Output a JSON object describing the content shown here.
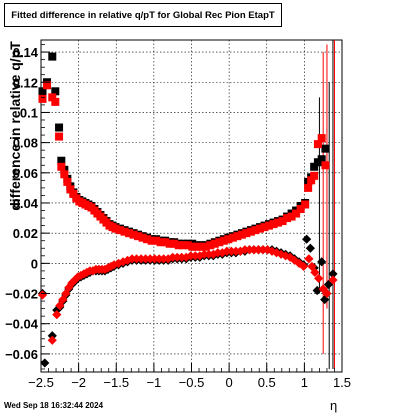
{
  "chart_data": {
    "type": "scatter",
    "title": "Fitted difference in relative q/pT for Global Rec Pion EtapT",
    "xlabel": "η",
    "ylabel": "difference in relative q/pT",
    "xlim": [
      -2.5,
      1.5
    ],
    "ylim": [
      -0.072,
      0.148
    ],
    "xticks": [
      "−2.5",
      "−2",
      "−1.5",
      "−1",
      "−0.5",
      "0",
      "0.5",
      "1",
      "1.5"
    ],
    "yticks": [
      "−0.06",
      "−0.04",
      "−0.02",
      "0",
      "0.02",
      "0.04",
      "0.06",
      "0.08",
      "0.1",
      "0.12",
      "0.14"
    ],
    "grid": true,
    "timestamp": "Wed Sep 18 16:32:44 2024",
    "series": [
      {
        "marker": "square",
        "color": "#000000",
        "points": [
          [
            -2.48,
            0.114
          ],
          [
            -2.42,
            0.12
          ],
          [
            -2.35,
            0.137
          ],
          [
            -2.31,
            0.114
          ],
          [
            -2.26,
            0.09
          ],
          [
            -2.23,
            0.068
          ],
          [
            -2.19,
            0.062
          ],
          [
            -2.15,
            0.056
          ],
          [
            -2.11,
            0.051
          ],
          [
            -2.07,
            0.047
          ],
          [
            -2.03,
            0.044
          ],
          [
            -1.99,
            0.042
          ],
          [
            -1.95,
            0.041
          ],
          [
            -1.91,
            0.04
          ],
          [
            -1.87,
            0.039
          ],
          [
            -1.83,
            0.038
          ],
          [
            -1.79,
            0.036
          ],
          [
            -1.75,
            0.034
          ],
          [
            -1.71,
            0.032
          ],
          [
            -1.67,
            0.03
          ],
          [
            -1.63,
            0.028
          ],
          [
            -1.59,
            0.026
          ],
          [
            -1.55,
            0.025
          ],
          [
            -1.51,
            0.024
          ],
          [
            -1.45,
            0.023
          ],
          [
            -1.39,
            0.022
          ],
          [
            -1.33,
            0.021
          ],
          [
            -1.27,
            0.02
          ],
          [
            -1.21,
            0.019
          ],
          [
            -1.15,
            0.018
          ],
          [
            -1.09,
            0.017
          ],
          [
            -1.03,
            0.016
          ],
          [
            -0.97,
            0.016
          ],
          [
            -0.91,
            0.015
          ],
          [
            -0.85,
            0.015
          ],
          [
            -0.79,
            0.014
          ],
          [
            -0.73,
            0.014
          ],
          [
            -0.67,
            0.013
          ],
          [
            -0.61,
            0.013
          ],
          [
            -0.55,
            0.013
          ],
          [
            -0.49,
            0.013
          ],
          [
            -0.43,
            0.012
          ],
          [
            -0.37,
            0.012
          ],
          [
            -0.31,
            0.012
          ],
          [
            -0.25,
            0.013
          ],
          [
            -0.19,
            0.014
          ],
          [
            -0.13,
            0.015
          ],
          [
            -0.07,
            0.016
          ],
          [
            -0.01,
            0.017
          ],
          [
            0.05,
            0.018
          ],
          [
            0.11,
            0.019
          ],
          [
            0.17,
            0.02
          ],
          [
            0.23,
            0.021
          ],
          [
            0.29,
            0.022
          ],
          [
            0.35,
            0.023
          ],
          [
            0.41,
            0.024
          ],
          [
            0.47,
            0.025
          ],
          [
            0.53,
            0.026
          ],
          [
            0.59,
            0.027
          ],
          [
            0.65,
            0.028
          ],
          [
            0.71,
            0.029
          ],
          [
            0.77,
            0.031
          ],
          [
            0.83,
            0.033
          ],
          [
            0.89,
            0.035
          ],
          [
            0.95,
            0.038
          ],
          [
            1.01,
            0.04
          ],
          [
            1.05,
            0.054
          ],
          [
            1.09,
            0.057
          ],
          [
            1.13,
            0.064
          ],
          [
            1.18,
            0.067
          ],
          [
            1.23,
            0.069
          ],
          [
            1.28,
            0.076
          ]
        ]
      },
      {
        "marker": "square",
        "color": "#ff0000",
        "points": [
          [
            -2.48,
            0.109
          ],
          [
            -2.42,
            0.118
          ],
          [
            -2.35,
            0.11
          ],
          [
            -2.31,
            0.107
          ],
          [
            -2.26,
            0.084
          ],
          [
            -2.23,
            0.064
          ],
          [
            -2.19,
            0.059
          ],
          [
            -2.15,
            0.054
          ],
          [
            -2.11,
            0.049
          ],
          [
            -2.07,
            0.046
          ],
          [
            -2.03,
            0.043
          ],
          [
            -1.99,
            0.041
          ],
          [
            -1.95,
            0.04
          ],
          [
            -1.91,
            0.039
          ],
          [
            -1.87,
            0.038
          ],
          [
            -1.83,
            0.037
          ],
          [
            -1.79,
            0.035
          ],
          [
            -1.75,
            0.033
          ],
          [
            -1.71,
            0.031
          ],
          [
            -1.67,
            0.029
          ],
          [
            -1.63,
            0.027
          ],
          [
            -1.59,
            0.025
          ],
          [
            -1.55,
            0.024
          ],
          [
            -1.51,
            0.023
          ],
          [
            -1.45,
            0.022
          ],
          [
            -1.39,
            0.021
          ],
          [
            -1.33,
            0.02
          ],
          [
            -1.27,
            0.019
          ],
          [
            -1.21,
            0.018
          ],
          [
            -1.15,
            0.017
          ],
          [
            -1.09,
            0.016
          ],
          [
            -1.03,
            0.015
          ],
          [
            -0.97,
            0.015
          ],
          [
            -0.91,
            0.014
          ],
          [
            -0.85,
            0.014
          ],
          [
            -0.79,
            0.013
          ],
          [
            -0.73,
            0.013
          ],
          [
            -0.67,
            0.012
          ],
          [
            -0.61,
            0.012
          ],
          [
            -0.55,
            0.012
          ],
          [
            -0.49,
            0.011
          ],
          [
            -0.43,
            0.011
          ],
          [
            -0.37,
            0.011
          ],
          [
            -0.31,
            0.011
          ],
          [
            -0.25,
            0.012
          ],
          [
            -0.19,
            0.013
          ],
          [
            -0.13,
            0.014
          ],
          [
            -0.07,
            0.015
          ],
          [
            -0.01,
            0.016
          ],
          [
            0.05,
            0.017
          ],
          [
            0.11,
            0.018
          ],
          [
            0.17,
            0.019
          ],
          [
            0.23,
            0.02
          ],
          [
            0.29,
            0.021
          ],
          [
            0.35,
            0.022
          ],
          [
            0.41,
            0.023
          ],
          [
            0.47,
            0.024
          ],
          [
            0.53,
            0.025
          ],
          [
            0.59,
            0.026
          ],
          [
            0.65,
            0.027
          ],
          [
            0.71,
            0.028
          ],
          [
            0.77,
            0.03
          ],
          [
            0.83,
            0.031
          ],
          [
            0.89,
            0.033
          ],
          [
            0.95,
            0.036
          ],
          [
            1.01,
            0.039
          ],
          [
            1.05,
            0.05
          ],
          [
            1.09,
            0.055
          ],
          [
            1.13,
            0.058
          ],
          [
            1.18,
            0.079
          ],
          [
            1.23,
            0.083
          ],
          [
            1.28,
            0.065
          ]
        ]
      },
      {
        "marker": "diamond",
        "color": "#000000",
        "points": [
          [
            -2.48,
            -0.02
          ],
          [
            -2.45,
            -0.066
          ],
          [
            -2.35,
            -0.048
          ],
          [
            -2.29,
            -0.031
          ],
          [
            -2.25,
            -0.029
          ],
          [
            -2.21,
            -0.025
          ],
          [
            -2.17,
            -0.021
          ],
          [
            -2.13,
            -0.017
          ],
          [
            -2.09,
            -0.014
          ],
          [
            -2.05,
            -0.012
          ],
          [
            -2.01,
            -0.01
          ],
          [
            -1.97,
            -0.009
          ],
          [
            -1.93,
            -0.008
          ],
          [
            -1.89,
            -0.007
          ],
          [
            -1.85,
            -0.006
          ],
          [
            -1.81,
            -0.005
          ],
          [
            -1.77,
            -0.005
          ],
          [
            -1.73,
            -0.005
          ],
          [
            -1.69,
            -0.005
          ],
          [
            -1.65,
            -0.005
          ],
          [
            -1.61,
            -0.004
          ],
          [
            -1.57,
            -0.003
          ],
          [
            -1.53,
            -0.002
          ],
          [
            -1.47,
            -0.001
          ],
          [
            -1.41,
            0
          ],
          [
            -1.35,
            0.001
          ],
          [
            -1.29,
            0.002
          ],
          [
            -1.23,
            0.002
          ],
          [
            -1.17,
            0.002
          ],
          [
            -1.11,
            0.002
          ],
          [
            -1.05,
            0.002
          ],
          [
            -0.99,
            0.002
          ],
          [
            -0.93,
            0.002
          ],
          [
            -0.87,
            0.002
          ],
          [
            -0.81,
            0.002
          ],
          [
            -0.75,
            0.003
          ],
          [
            -0.69,
            0.003
          ],
          [
            -0.63,
            0.003
          ],
          [
            -0.57,
            0.003
          ],
          [
            -0.51,
            0.004
          ],
          [
            -0.45,
            0.004
          ],
          [
            -0.39,
            0.004
          ],
          [
            -0.33,
            0.005
          ],
          [
            -0.27,
            0.005
          ],
          [
            -0.21,
            0.005
          ],
          [
            -0.15,
            0.006
          ],
          [
            -0.09,
            0.006
          ],
          [
            -0.03,
            0.007
          ],
          [
            0.03,
            0.007
          ],
          [
            0.09,
            0.007
          ],
          [
            0.15,
            0.008
          ],
          [
            0.21,
            0.008
          ],
          [
            0.27,
            0.009
          ],
          [
            0.33,
            0.009
          ],
          [
            0.39,
            0.009
          ],
          [
            0.45,
            0.009
          ],
          [
            0.51,
            0.009
          ],
          [
            0.57,
            0.009
          ],
          [
            0.63,
            0.008
          ],
          [
            0.69,
            0.007
          ],
          [
            0.75,
            0.006
          ],
          [
            0.81,
            0.005
          ],
          [
            0.87,
            0.003
          ],
          [
            0.93,
            0.001
          ],
          [
            0.99,
            -0.001
          ],
          [
            1.03,
            0.016
          ],
          [
            1.08,
            0.01
          ],
          [
            1.13,
            -0.003
          ],
          [
            1.17,
            -0.018
          ],
          [
            1.23,
            0.001
          ],
          [
            1.27,
            -0.024
          ],
          [
            1.32,
            -0.014
          ],
          [
            1.38,
            -0.007
          ]
        ]
      },
      {
        "marker": "diamond",
        "color": "#ff0000",
        "points": [
          [
            -2.48,
            -0.021
          ],
          [
            -2.35,
            -0.051
          ],
          [
            -2.29,
            -0.034
          ],
          [
            -2.25,
            -0.028
          ],
          [
            -2.21,
            -0.024
          ],
          [
            -2.17,
            -0.02
          ],
          [
            -2.13,
            -0.016
          ],
          [
            -2.09,
            -0.013
          ],
          [
            -2.05,
            -0.011
          ],
          [
            -2.01,
            -0.009
          ],
          [
            -1.97,
            -0.008
          ],
          [
            -1.93,
            -0.007
          ],
          [
            -1.89,
            -0.006
          ],
          [
            -1.85,
            -0.005
          ],
          [
            -1.81,
            -0.005
          ],
          [
            -1.77,
            -0.004
          ],
          [
            -1.73,
            -0.004
          ],
          [
            -1.69,
            -0.004
          ],
          [
            -1.65,
            -0.004
          ],
          [
            -1.61,
            -0.003
          ],
          [
            -1.57,
            -0.002
          ],
          [
            -1.53,
            -0.001
          ],
          [
            -1.47,
            0
          ],
          [
            -1.41,
            0.001
          ],
          [
            -1.35,
            0.002
          ],
          [
            -1.29,
            0.003
          ],
          [
            -1.23,
            0.003
          ],
          [
            -1.17,
            0.003
          ],
          [
            -1.11,
            0.003
          ],
          [
            -1.05,
            0.003
          ],
          [
            -0.99,
            0.003
          ],
          [
            -0.93,
            0.003
          ],
          [
            -0.87,
            0.003
          ],
          [
            -0.81,
            0.003
          ],
          [
            -0.75,
            0.004
          ],
          [
            -0.69,
            0.004
          ],
          [
            -0.63,
            0.004
          ],
          [
            -0.57,
            0.004
          ],
          [
            -0.51,
            0.005
          ],
          [
            -0.45,
            0.005
          ],
          [
            -0.39,
            0.005
          ],
          [
            -0.33,
            0.006
          ],
          [
            -0.27,
            0.006
          ],
          [
            -0.21,
            0.006
          ],
          [
            -0.15,
            0.007
          ],
          [
            -0.09,
            0.007
          ],
          [
            -0.03,
            0.008
          ],
          [
            0.03,
            0.008
          ],
          [
            0.09,
            0.008
          ],
          [
            0.15,
            0.008
          ],
          [
            0.21,
            0.009
          ],
          [
            0.27,
            0.009
          ],
          [
            0.33,
            0.009
          ],
          [
            0.39,
            0.009
          ],
          [
            0.45,
            0.009
          ],
          [
            0.51,
            0.009
          ],
          [
            0.57,
            0.008
          ],
          [
            0.63,
            0.007
          ],
          [
            0.69,
            0.006
          ],
          [
            0.75,
            0.005
          ],
          [
            0.81,
            0.004
          ],
          [
            0.87,
            0.002
          ],
          [
            0.93,
            0
          ],
          [
            0.99,
            -0.002
          ],
          [
            1.06,
            0.003
          ],
          [
            1.1,
            -0.002
          ],
          [
            1.14,
            -0.006
          ],
          [
            1.19,
            -0.01
          ],
          [
            1.25,
            -0.017
          ],
          [
            1.3,
            -0.02
          ],
          [
            1.38,
            -0.011
          ]
        ]
      }
    ],
    "error_bars": [
      {
        "x": 1.25,
        "y": 0.07,
        "lo": -0.06,
        "hi": 0.14,
        "color": "#ff0000"
      },
      {
        "x": 1.3,
        "y": 0.065,
        "lo": -0.03,
        "hi": 0.145,
        "color": "#ff0000"
      },
      {
        "x": 1.33,
        "y": -0.02,
        "lo": -0.07,
        "hi": 0.12,
        "color": "#000000"
      },
      {
        "x": 1.38,
        "y": -0.01,
        "lo": -0.07,
        "hi": 0.148,
        "color": "#000000"
      },
      {
        "x": 1.2,
        "y": 0.05,
        "lo": -0.02,
        "hi": 0.11,
        "color": "#000000"
      },
      {
        "x": 1.4,
        "y": 0.0,
        "lo": -0.07,
        "hi": 0.148,
        "color": "#ff0000"
      }
    ]
  }
}
